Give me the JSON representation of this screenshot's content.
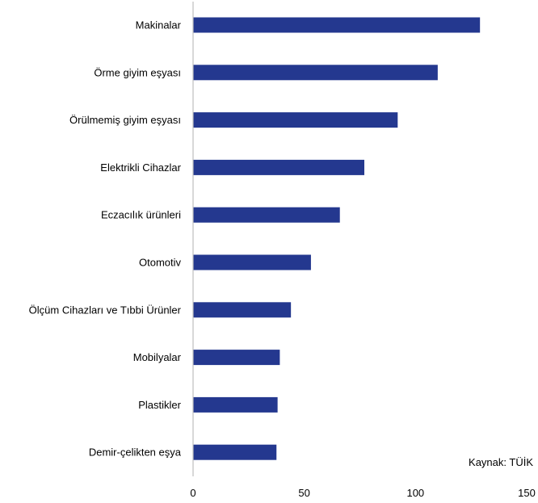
{
  "chart_data": {
    "type": "bar",
    "orientation": "horizontal",
    "categories": [
      "Makinalar",
      "Örme giyim eşyası",
      "Örülmemiş giyim eşyası",
      "Elektrikli Cihazlar",
      "Eczacılık ürünleri",
      "Otomotiv",
      "Ölçüm Cihazları ve Tıbbi Ürünler",
      "Mobilyalar",
      "Plastikler",
      "Demir-çelikten eşya"
    ],
    "values": [
      129,
      110,
      92,
      77,
      66,
      53,
      44,
      39,
      38,
      37.5
    ],
    "xlim": [
      0,
      150
    ],
    "xticks": [
      0,
      50,
      100,
      150
    ],
    "bar_color": "#24388F",
    "axis_color": "#BFBFBF",
    "grid": false,
    "source_note": "Kaynak: TÜİK"
  }
}
